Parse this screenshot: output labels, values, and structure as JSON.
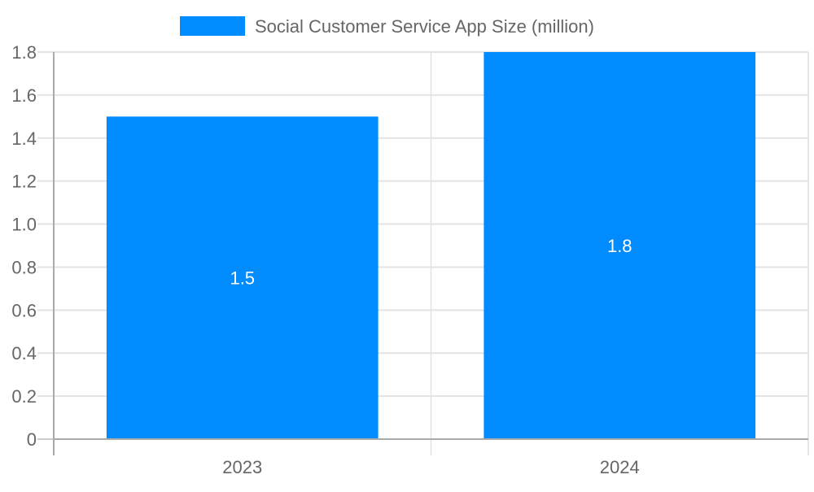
{
  "chart_data": {
    "type": "bar",
    "categories": [
      "2023",
      "2024"
    ],
    "series": [
      {
        "name": "Social Customer Service App Size (million)",
        "values": [
          1.5,
          1.8
        ],
        "color": "#008cff"
      }
    ],
    "data_labels": [
      "1.5",
      "1.8"
    ],
    "ylim": [
      0,
      1.8
    ],
    "yticks": [
      0,
      0.2,
      0.4,
      0.6,
      0.8,
      1.0,
      1.2,
      1.4,
      1.6,
      1.8
    ],
    "ytick_labels": [
      "0",
      "0.2",
      "0.4",
      "0.6",
      "0.8",
      "1.0",
      "1.2",
      "1.4",
      "1.6",
      "1.8"
    ],
    "grid": true,
    "legend_position": "top",
    "xlabel": "",
    "ylabel": "",
    "title": ""
  }
}
